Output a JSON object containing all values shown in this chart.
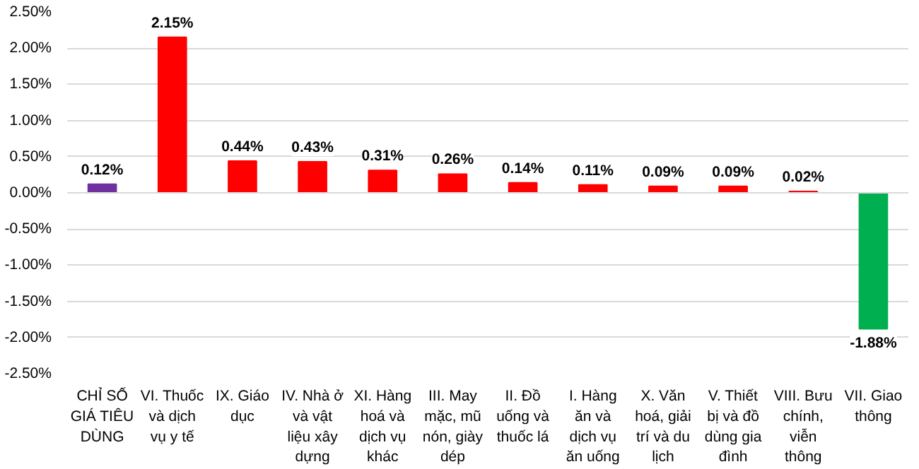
{
  "chart_data": {
    "type": "bar",
    "categories": [
      "CHỈ SỐ GIÁ TIÊU DÙNG",
      "VI. Thuốc và dịch vụ y tế",
      "IX. Giáo dục",
      "IV. Nhà ở và vật liệu xây dựng",
      "XI. Hàng hoá và dịch vụ khác",
      "III. May mặc, mũ nón, giày dép",
      "II. Đồ uống và thuốc lá",
      "I. Hàng ăn và dịch vụ ăn uống",
      "X. Văn hoá, giải trí và du lịch",
      "V. Thiết bị và đồ dùng gia đình",
      "VIII. Bưu chính, viễn thông",
      "VII. Giao thông"
    ],
    "values": [
      0.12,
      2.15,
      0.44,
      0.43,
      0.31,
      0.26,
      0.14,
      0.11,
      0.09,
      0.09,
      0.02,
      -1.88
    ],
    "colors": [
      "#7030a0",
      "#ff0000",
      "#ff0000",
      "#ff0000",
      "#ff0000",
      "#ff0000",
      "#ff0000",
      "#ff0000",
      "#ff0000",
      "#ff0000",
      "#ff0000",
      "#00b050"
    ],
    "value_labels": [
      "0.12%",
      "2.15%",
      "0.44%",
      "0.43%",
      "0.31%",
      "0.26%",
      "0.14%",
      "0.11%",
      "0.09%",
      "0.09%",
      "0.02%",
      "-1.88%"
    ],
    "ylim": [
      -2.5,
      2.5
    ],
    "yticks": [
      {
        "value": 2.5,
        "label": "2.50%"
      },
      {
        "value": 2.0,
        "label": "2.00%"
      },
      {
        "value": 1.5,
        "label": "1.50%"
      },
      {
        "value": 1.0,
        "label": "1.00%"
      },
      {
        "value": 0.5,
        "label": "0.50%"
      },
      {
        "value": 0.0,
        "label": "0.00%"
      },
      {
        "value": -0.5,
        "label": "-0.50%"
      },
      {
        "value": -1.0,
        "label": "-1.00%"
      },
      {
        "value": -1.5,
        "label": "-1.50%"
      },
      {
        "value": -2.0,
        "label": "-2.00%"
      },
      {
        "value": -2.5,
        "label": "-2.50%"
      }
    ],
    "grid": "y"
  }
}
